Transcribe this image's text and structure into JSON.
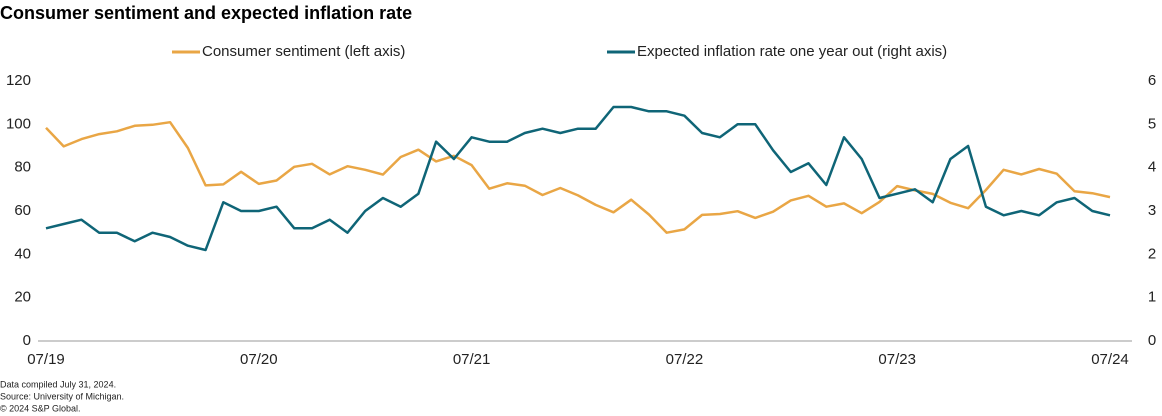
{
  "chart_data": {
    "type": "line",
    "title": "Consumer sentiment and expected inflation rate",
    "categories": [
      "07/19",
      null,
      null,
      null,
      null,
      null,
      null,
      null,
      null,
      null,
      null,
      null,
      "07/20",
      null,
      null,
      null,
      null,
      null,
      null,
      null,
      null,
      null,
      null,
      null,
      "07/21",
      null,
      null,
      null,
      null,
      null,
      null,
      null,
      null,
      null,
      null,
      null,
      "07/22",
      null,
      null,
      null,
      null,
      null,
      null,
      null,
      null,
      null,
      null,
      null,
      "07/23",
      null,
      null,
      null,
      null,
      null,
      null,
      null,
      null,
      null,
      null,
      null,
      "07/24"
    ],
    "series": [
      {
        "name": "Consumer sentiment (left axis)",
        "color": "#E9A645",
        "axis": "y",
        "values": [
          98.4,
          89.8,
          93.2,
          95.5,
          96.8,
          99.3,
          99.8,
          101.0,
          89.1,
          71.8,
          72.3,
          78.1,
          72.5,
          74.1,
          80.4,
          81.8,
          76.9,
          80.7,
          79.0,
          76.8,
          84.9,
          88.3,
          82.9,
          85.5,
          81.2,
          70.3,
          72.8,
          71.7,
          67.4,
          70.6,
          67.2,
          62.8,
          59.4,
          65.2,
          58.4,
          50.0,
          51.5,
          58.2,
          58.6,
          59.9,
          56.8,
          59.7,
          64.9,
          67.0,
          62.0,
          63.5,
          59.0,
          64.2,
          71.5,
          69.5,
          67.9,
          63.8,
          61.3,
          69.7,
          79.0,
          76.9,
          79.4,
          77.2,
          69.1,
          68.2,
          66.4
        ]
      },
      {
        "name": "Expected inflation rate one year out (right axis)",
        "color": "#0F6577",
        "axis": "y2",
        "values": [
          2.6,
          2.7,
          2.8,
          2.5,
          2.5,
          2.3,
          2.5,
          2.4,
          2.2,
          2.1,
          3.2,
          3.0,
          3.0,
          3.1,
          2.6,
          2.6,
          2.8,
          2.5,
          3.0,
          3.3,
          3.1,
          3.4,
          4.6,
          4.2,
          4.7,
          4.6,
          4.6,
          4.8,
          4.9,
          4.8,
          4.9,
          4.9,
          5.4,
          5.4,
          5.3,
          5.3,
          5.2,
          4.8,
          4.7,
          5.0,
          5.0,
          4.4,
          3.9,
          4.1,
          3.6,
          4.7,
          4.2,
          3.3,
          3.4,
          3.5,
          3.2,
          4.2,
          4.5,
          3.1,
          2.9,
          3.0,
          2.9,
          3.2,
          3.3,
          3.0,
          2.9
        ]
      }
    ],
    "ylim": [
      0,
      120
    ],
    "yticks": [
      0,
      20,
      40,
      60,
      80,
      100,
      120
    ],
    "y2lim": [
      0,
      6
    ],
    "y2ticks": [
      0,
      1,
      2,
      3,
      4,
      5,
      6
    ],
    "grid": false,
    "legend": "top",
    "footnotes": [
      "Data compiled July 31, 2024.",
      "Source: University of Michigan.",
      "© 2024 S&P Global."
    ]
  }
}
